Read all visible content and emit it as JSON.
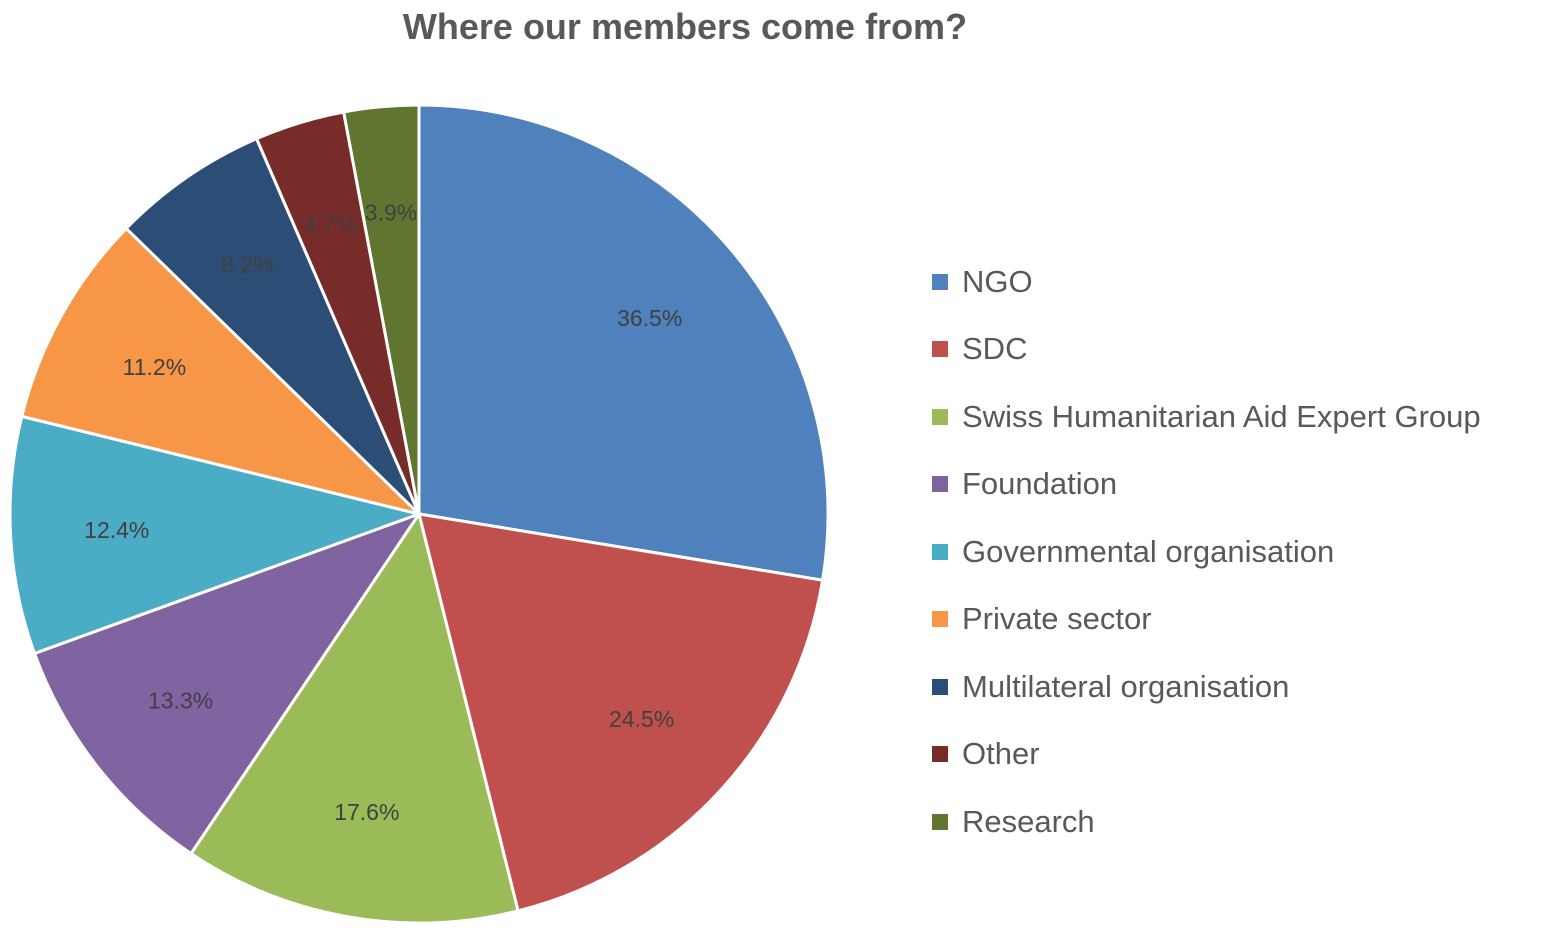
{
  "chart_data": {
    "type": "pie",
    "title": "Where our members come from?",
    "categories": [
      "NGO",
      "SDC",
      "Swiss Humanitarian Aid Expert Group",
      "Foundation",
      "Governmental organisation",
      "Private sector",
      "Multilateral organisation",
      "Other",
      "Research"
    ],
    "values": [
      36.5,
      24.5,
      17.6,
      13.3,
      12.4,
      11.2,
      8.2,
      4.7,
      3.9
    ],
    "data_labels": [
      "36.5%",
      "24.5%",
      "17.6%",
      "13.3%",
      "12.4%",
      "11.2%",
      "8.2%",
      "4.7%",
      "3.9%"
    ],
    "colors": [
      "#4F81BD",
      "#C0504D",
      "#9BBB59",
      "#8064A2",
      "#4BACC6",
      "#F79646",
      "#2C4D75",
      "#772C2A",
      "#5F7530"
    ],
    "legend_position": "right",
    "start_angle": "12 o'clock",
    "direction": "clockwise"
  }
}
